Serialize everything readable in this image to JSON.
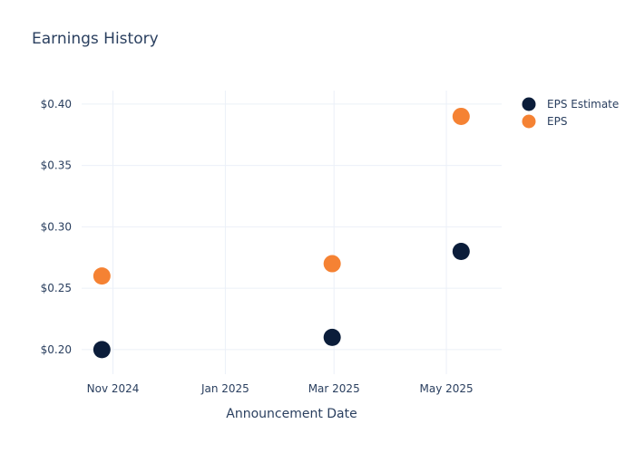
{
  "chart_data": {
    "type": "scatter",
    "title": "Earnings History",
    "xlabel": "Announcement Date",
    "ylabel": "",
    "x_tick_labels": [
      {
        "date": "2024-11-01",
        "label": "Nov 2024"
      },
      {
        "date": "2025-01-01",
        "label": "Jan 2025"
      },
      {
        "date": "2025-03-01",
        "label": "Mar 2025"
      },
      {
        "date": "2025-05-01",
        "label": "May 2025"
      }
    ],
    "y_tick_labels": [
      {
        "value": 0.2,
        "label": "$0.20"
      },
      {
        "value": 0.25,
        "label": "$0.25"
      },
      {
        "value": 0.3,
        "label": "$0.30"
      },
      {
        "value": 0.35,
        "label": "$0.35"
      },
      {
        "value": 0.4,
        "label": "$0.40"
      }
    ],
    "xlim": [
      "2024-10-15",
      "2025-05-31"
    ],
    "ylim": [
      0.18,
      0.411
    ],
    "grid": true,
    "legend_position": "top-right",
    "series": [
      {
        "name": "EPS Estimate",
        "color": "#0b1d3a",
        "points": [
          {
            "x": "2024-10-26",
            "y": 0.2
          },
          {
            "x": "2025-02-28",
            "y": 0.21
          },
          {
            "x": "2025-05-09",
            "y": 0.28
          }
        ]
      },
      {
        "name": "EPS",
        "color": "#f58233",
        "points": [
          {
            "x": "2024-10-26",
            "y": 0.26
          },
          {
            "x": "2025-02-28",
            "y": 0.27
          },
          {
            "x": "2025-05-09",
            "y": 0.39
          }
        ]
      }
    ]
  }
}
